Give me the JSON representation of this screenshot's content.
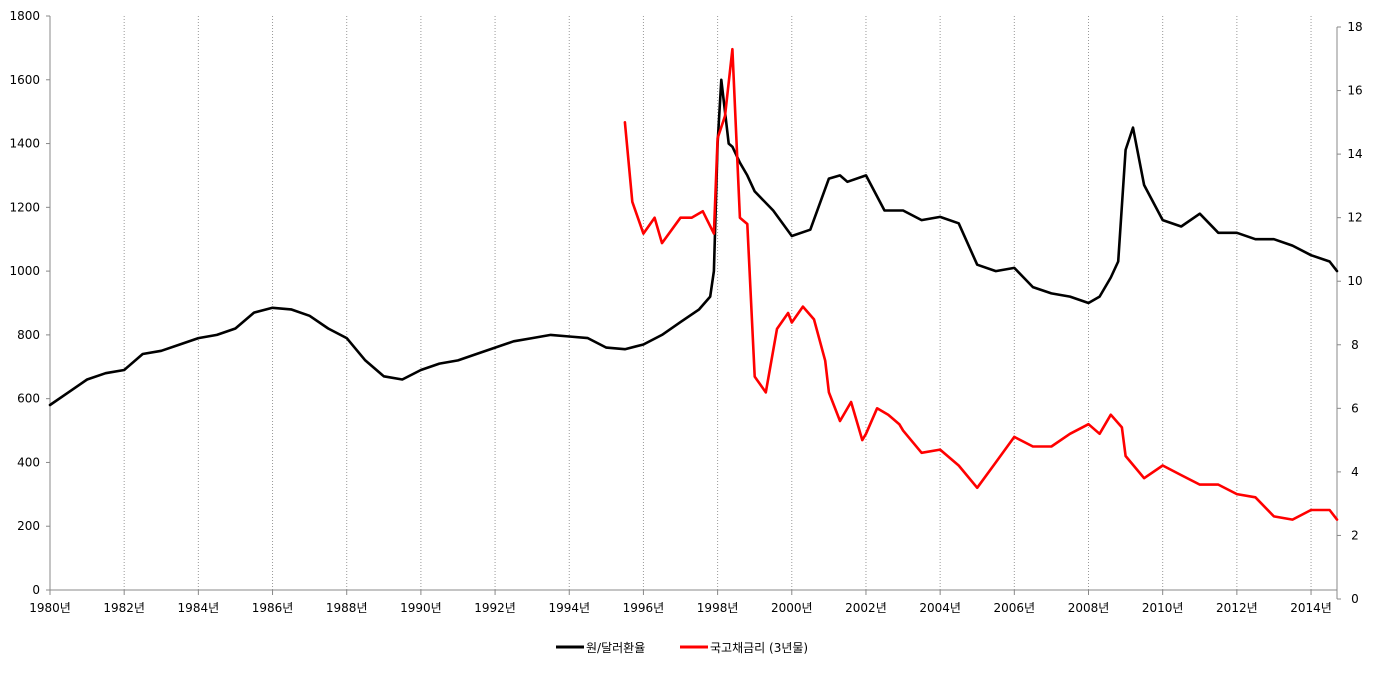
{
  "chart_data": {
    "type": "line",
    "title": "",
    "xlabel": "",
    "ylabel": "",
    "y2label": "",
    "x_tick_labels": [
      "1980년",
      "1982년",
      "1984년",
      "1986년",
      "1988년",
      "1990년",
      "1992년",
      "1994년",
      "1996년",
      "1998년",
      "2000년",
      "2002년",
      "2004년",
      "2006년",
      "2008년",
      "2010년",
      "2012년",
      "2014년"
    ],
    "xlim": [
      1980,
      2014.7
    ],
    "ylim": [
      0,
      1800
    ],
    "y_ticks": [
      0,
      200,
      400,
      600,
      800,
      1000,
      1200,
      1400,
      1600,
      1800
    ],
    "y2lim": [
      0,
      18
    ],
    "y2_ticks": [
      0,
      2,
      4,
      6,
      8,
      10,
      12,
      14,
      16,
      18
    ],
    "grid": "vertical dotted lines at each x tick",
    "legend_position": "bottom-center",
    "series": [
      {
        "name": "원/달러환율",
        "axis": "left",
        "color": "#000000",
        "x": [
          1980.0,
          1980.5,
          1981.0,
          1981.5,
          1982.0,
          1982.5,
          1983.0,
          1983.5,
          1984.0,
          1984.5,
          1985.0,
          1985.5,
          1986.0,
          1986.5,
          1987.0,
          1987.5,
          1988.0,
          1988.5,
          1989.0,
          1989.5,
          1990.0,
          1990.5,
          1991.0,
          1991.5,
          1992.0,
          1992.5,
          1993.0,
          1993.5,
          1994.0,
          1994.5,
          1995.0,
          1995.5,
          1996.0,
          1996.5,
          1997.0,
          1997.5,
          1997.8,
          1997.9,
          1998.0,
          1998.1,
          1998.3,
          1998.4,
          1998.6,
          1998.8,
          1999.0,
          1999.5,
          2000.0,
          2000.5,
          2001.0,
          2001.3,
          2001.5,
          2002.0,
          2002.5,
          2003.0,
          2003.5,
          2004.0,
          2004.5,
          2005.0,
          2005.5,
          2006.0,
          2006.5,
          2007.0,
          2007.5,
          2008.0,
          2008.3,
          2008.6,
          2008.8,
          2009.0,
          2009.2,
          2009.5,
          2010.0,
          2010.5,
          2011.0,
          2011.5,
          2012.0,
          2012.5,
          2013.0,
          2013.5,
          2014.0,
          2014.5,
          2014.7
        ],
        "values": [
          580,
          620,
          660,
          680,
          690,
          740,
          750,
          770,
          790,
          800,
          820,
          870,
          885,
          880,
          860,
          820,
          790,
          720,
          670,
          660,
          690,
          710,
          720,
          740,
          760,
          780,
          790,
          800,
          795,
          790,
          760,
          755,
          770,
          800,
          840,
          880,
          920,
          1000,
          1400,
          1600,
          1400,
          1390,
          1340,
          1300,
          1250,
          1190,
          1110,
          1130,
          1290,
          1300,
          1280,
          1300,
          1190,
          1190,
          1160,
          1170,
          1150,
          1020,
          1000,
          1010,
          950,
          930,
          920,
          900,
          920,
          980,
          1030,
          1380,
          1450,
          1270,
          1160,
          1140,
          1180,
          1120,
          1120,
          1100,
          1100,
          1080,
          1050,
          1030,
          1000
        ]
      },
      {
        "name": "국고채금리 (3년물)",
        "axis": "right",
        "color": "#ff0000",
        "x": [
          1995.5,
          1995.7,
          1996.0,
          1996.3,
          1996.5,
          1997.0,
          1997.3,
          1997.6,
          1997.9,
          1998.0,
          1998.2,
          1998.4,
          1998.6,
          1998.8,
          1999.0,
          1999.3,
          1999.6,
          1999.9,
          2000.0,
          2000.3,
          2000.6,
          2000.9,
          2001.0,
          2001.3,
          2001.6,
          2001.9,
          2002.0,
          2002.3,
          2002.6,
          2002.9,
          2003.0,
          2003.5,
          2004.0,
          2004.5,
          2005.0,
          2005.5,
          2006.0,
          2006.5,
          2007.0,
          2007.5,
          2008.0,
          2008.3,
          2008.6,
          2008.9,
          2009.0,
          2009.5,
          2010.0,
          2010.5,
          2011.0,
          2011.5,
          2012.0,
          2012.5,
          2013.0,
          2013.5,
          2014.0,
          2014.5,
          2014.7
        ],
        "values": [
          15.0,
          12.5,
          11.5,
          12.0,
          11.2,
          12.0,
          12.0,
          12.2,
          11.5,
          14.5,
          15.2,
          17.3,
          12.0,
          11.8,
          7.0,
          6.5,
          8.5,
          9.0,
          8.7,
          9.2,
          8.8,
          7.5,
          6.5,
          5.6,
          6.2,
          5.0,
          5.2,
          6.0,
          5.8,
          5.5,
          5.3,
          4.6,
          4.7,
          4.2,
          3.5,
          4.3,
          5.1,
          4.8,
          4.8,
          5.2,
          5.5,
          5.2,
          5.8,
          5.4,
          4.5,
          3.8,
          4.2,
          3.9,
          3.6,
          3.6,
          3.3,
          3.2,
          2.6,
          2.5,
          2.8,
          2.8,
          2.5
        ]
      }
    ]
  }
}
